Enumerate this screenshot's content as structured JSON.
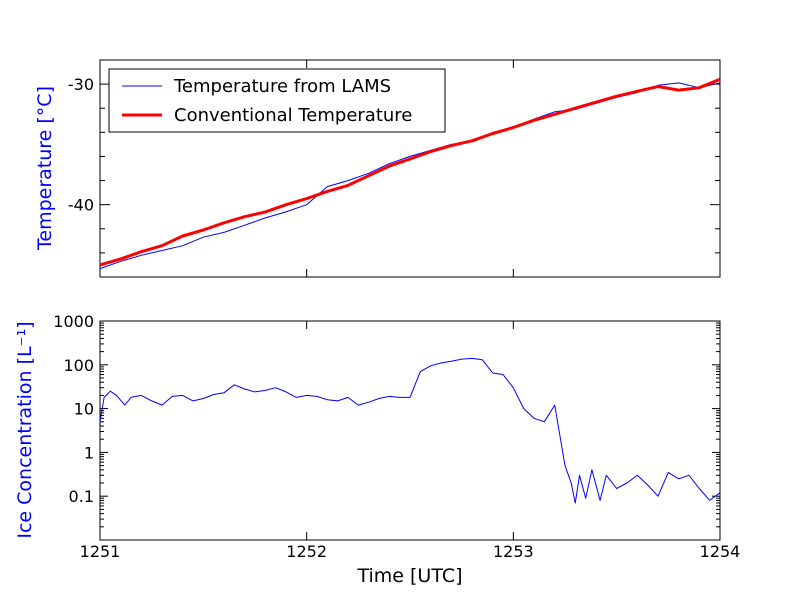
{
  "xlabel": "Time [UTC]",
  "x_ticks": [
    1251,
    1252,
    1253,
    1254
  ],
  "colors": {
    "lams": "#0000ff",
    "conventional": "#ff0000",
    "axis_label": "#0000ff"
  },
  "chart_data": [
    {
      "type": "line",
      "ylabel": "Temperature [°C]",
      "xlim": [
        1251,
        1254
      ],
      "ylim": [
        -46,
        -28
      ],
      "y_ticks": [
        -40,
        -30
      ],
      "legend_placement": "upper-left",
      "series": [
        {
          "name": "Temperature from LAMS",
          "x": [
            1251.0,
            1251.1,
            1251.2,
            1251.3,
            1251.4,
            1251.5,
            1251.6,
            1251.7,
            1251.8,
            1251.9,
            1252.0,
            1252.1,
            1252.2,
            1252.3,
            1252.4,
            1252.5,
            1252.6,
            1252.7,
            1252.8,
            1252.9,
            1253.0,
            1253.1,
            1253.2,
            1253.3,
            1253.4,
            1253.5,
            1253.6,
            1253.7,
            1253.8,
            1253.9,
            1254.0
          ],
          "y": [
            -45.3,
            -44.7,
            -44.2,
            -43.8,
            -43.4,
            -42.7,
            -42.3,
            -41.7,
            -41.1,
            -40.6,
            -40.0,
            -38.5,
            -38.0,
            -37.4,
            -36.6,
            -36.0,
            -35.5,
            -35.0,
            -34.8,
            -34.1,
            -33.6,
            -32.9,
            -32.3,
            -32.1,
            -31.6,
            -31.1,
            -30.7,
            -30.1,
            -29.9,
            -30.3,
            -29.9
          ]
        },
        {
          "name": "Conventional Temperature",
          "x": [
            1251.0,
            1251.1,
            1251.2,
            1251.3,
            1251.4,
            1251.5,
            1251.6,
            1251.7,
            1251.8,
            1251.9,
            1252.0,
            1252.1,
            1252.2,
            1252.3,
            1252.4,
            1252.5,
            1252.6,
            1252.7,
            1252.8,
            1252.9,
            1253.0,
            1253.1,
            1253.2,
            1253.3,
            1253.4,
            1253.5,
            1253.6,
            1253.7,
            1253.8,
            1253.9,
            1254.0
          ],
          "y": [
            -45.0,
            -44.5,
            -43.9,
            -43.4,
            -42.6,
            -42.1,
            -41.5,
            -41.0,
            -40.6,
            -40.0,
            -39.5,
            -38.9,
            -38.4,
            -37.6,
            -36.8,
            -36.2,
            -35.6,
            -35.1,
            -34.7,
            -34.1,
            -33.6,
            -33.0,
            -32.5,
            -32.0,
            -31.5,
            -31.0,
            -30.6,
            -30.2,
            -30.5,
            -30.3,
            -29.6
          ]
        }
      ]
    },
    {
      "type": "line",
      "ylabel": "Ice Concentration [L⁻¹]",
      "yscale": "log",
      "xlim": [
        1251,
        1254
      ],
      "ylim": [
        0.01,
        1000
      ],
      "y_tick_labels": [
        "0.1",
        "1",
        "10",
        "100",
        "1000"
      ],
      "y_tick_values": [
        0.1,
        1,
        10,
        100,
        1000
      ],
      "series": [
        {
          "x": [
            1251.0,
            1251.02,
            1251.05,
            1251.08,
            1251.12,
            1251.15,
            1251.2,
            1251.25,
            1251.3,
            1251.35,
            1251.4,
            1251.45,
            1251.5,
            1251.55,
            1251.6,
            1251.65,
            1251.7,
            1251.75,
            1251.8,
            1251.85,
            1251.9,
            1251.95,
            1252.0,
            1252.05,
            1252.1,
            1252.15,
            1252.2,
            1252.25,
            1252.3,
            1252.35,
            1252.4,
            1252.45,
            1252.5,
            1252.55,
            1252.6,
            1252.65,
            1252.7,
            1252.75,
            1252.8,
            1252.85,
            1252.9,
            1252.95,
            1253.0,
            1253.05,
            1253.1,
            1253.15,
            1253.2,
            1253.25,
            1253.28,
            1253.3,
            1253.32,
            1253.35,
            1253.38,
            1253.42,
            1253.45,
            1253.5,
            1253.55,
            1253.6,
            1253.65,
            1253.7,
            1253.75,
            1253.8,
            1253.85,
            1253.9,
            1253.95,
            1254.0
          ],
          "y": [
            5,
            18,
            25,
            20,
            12,
            18,
            20,
            15,
            12,
            19,
            20,
            15,
            17,
            21,
            23,
            35,
            28,
            24,
            26,
            30,
            24,
            18,
            20,
            19,
            16,
            15,
            18,
            12,
            14,
            17,
            19,
            18,
            18,
            70,
            95,
            110,
            120,
            135,
            140,
            130,
            65,
            60,
            30,
            10,
            6,
            5,
            12,
            0.5,
            0.2,
            0.07,
            0.3,
            0.09,
            0.4,
            0.08,
            0.3,
            0.15,
            0.2,
            0.3,
            0.18,
            0.1,
            0.35,
            0.25,
            0.3,
            0.15,
            0.08,
            0.12
          ]
        }
      ]
    }
  ]
}
